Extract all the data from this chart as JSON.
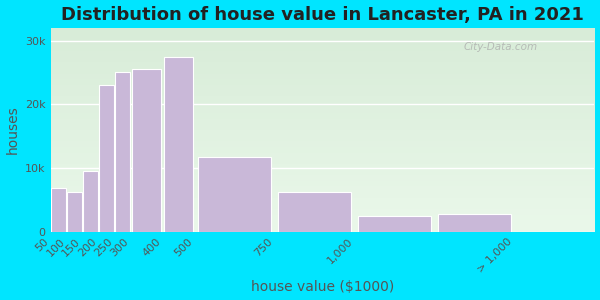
{
  "title": "Distribution of house value in Lancaster, PA in 2021",
  "xlabel": "house value ($1000)",
  "ylabel": "houses",
  "bar_labels": [
    "50",
    "100",
    "150",
    "200",
    "250",
    "300",
    "400",
    "500",
    "750",
    "1,000",
    "> 1,000"
  ],
  "bar_left_edges": [
    50,
    100,
    150,
    200,
    250,
    300,
    400,
    500,
    750,
    1000,
    1250
  ],
  "bar_widths": [
    50,
    50,
    50,
    50,
    50,
    100,
    100,
    250,
    250,
    250,
    250
  ],
  "bar_values": [
    6800,
    6200,
    9500,
    23000,
    25000,
    25500,
    27500,
    11800,
    6200,
    2500,
    2800
  ],
  "bar_color": "#c9b8d8",
  "bar_edge_color": "#ffffff",
  "background_outer": "#00e5ff",
  "background_plot_top": "#d8ecd8",
  "background_plot_bottom": "#eaf8ea",
  "title_fontsize": 13,
  "axis_label_fontsize": 10,
  "tick_fontsize": 8,
  "ytick_values": [
    0,
    10000,
    20000,
    30000
  ],
  "ytick_labels": [
    "0",
    "10k",
    "20k",
    "30k"
  ],
  "ylim": [
    0,
    32000
  ],
  "xtick_positions": [
    50,
    100,
    150,
    200,
    250,
    300,
    400,
    500,
    750,
    1000,
    1500
  ],
  "xtick_labels": [
    "50",
    "100",
    "150",
    "200",
    "250",
    "300",
    "400",
    "500",
    "750",
    "1,000",
    "> 1,000"
  ],
  "xlim": [
    50,
    1750
  ],
  "watermark_text": "City-Data.com"
}
